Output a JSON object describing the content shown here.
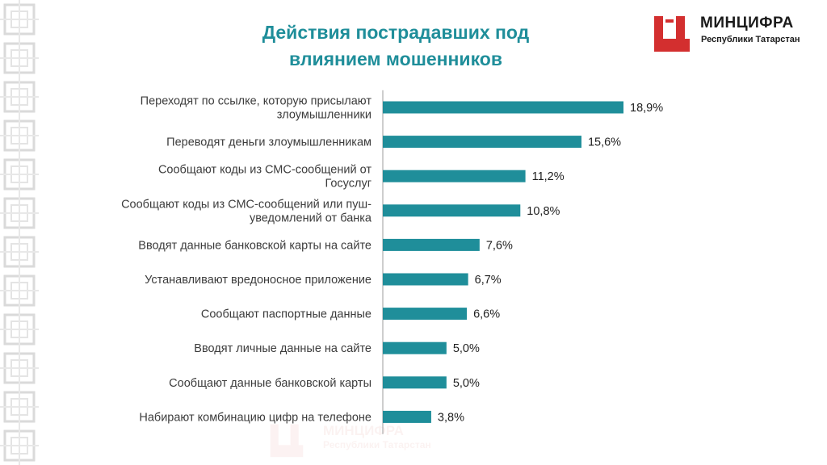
{
  "slide": {
    "title_lines": [
      "Действия пострадавших под",
      "влиянием мошенников"
    ]
  },
  "logo": {
    "name": "МИНЦИФРА",
    "subtitle": "Республики Татарстан",
    "brand_color": "#d32f2f",
    "icon": "ministry-logo-icon"
  },
  "watermark": {
    "name": "МИНЦИФРА",
    "subtitle": "Республики Татарстан"
  },
  "chart_data": {
    "type": "bar",
    "orientation": "horizontal",
    "categories": [
      [
        "Переходят по ссылке, которую присылают",
        "злоумышленники"
      ],
      [
        "Переводят деньги злоумышленникам"
      ],
      [
        "Сообщают коды из СМС-сообщений от",
        "Госуслуг"
      ],
      [
        "Сообщают коды из СМС-сообщений или пуш-",
        "уведомлений от банка"
      ],
      [
        "Вводят данные банковской карты на сайте"
      ],
      [
        "Устанавливают вредоносное приложение"
      ],
      [
        "Сообщают паспортные данные"
      ],
      [
        "Вводят личные данные на сайте"
      ],
      [
        "Сообщают данные банковской карты"
      ],
      [
        "Набирают комбинацию цифр на телефоне"
      ]
    ],
    "values": [
      18.9,
      15.6,
      11.2,
      10.8,
      7.6,
      6.7,
      6.6,
      5.0,
      5.0,
      3.8
    ],
    "value_labels": [
      "18,9%",
      "15,6%",
      "11,2%",
      "10,8%",
      "7,6%",
      "6,7%",
      "6,6%",
      "5,0%",
      "5,0%",
      "3,8%"
    ],
    "unit": "%",
    "bar_color": "#1f8e9a",
    "grid": false,
    "legend": "none"
  }
}
